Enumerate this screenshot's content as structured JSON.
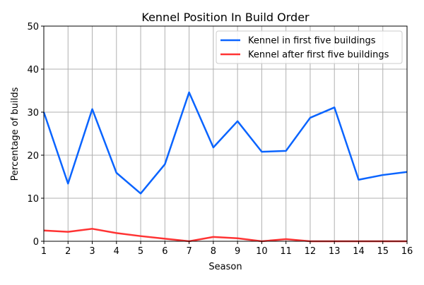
{
  "chart_data": {
    "type": "line",
    "title": "Kennel Position In Build Order",
    "xlabel": "Season",
    "ylabel": "Percentage of builds",
    "x": [
      1,
      2,
      3,
      4,
      5,
      6,
      7,
      8,
      9,
      10,
      11,
      12,
      13,
      14,
      15,
      16
    ],
    "xlim": [
      1,
      16
    ],
    "ylim": [
      0,
      50
    ],
    "yticks": [
      0,
      10,
      20,
      30,
      40,
      50
    ],
    "grid": true,
    "legend_position": "top-right",
    "series": [
      {
        "name": "Kennel in first five buildings",
        "color": "#0a64ff",
        "values": [
          30.0,
          13.4,
          30.7,
          15.9,
          11.1,
          17.9,
          34.6,
          21.8,
          27.9,
          20.8,
          21.0,
          28.7,
          31.1,
          14.3,
          15.4,
          16.1
        ]
      },
      {
        "name": "Kennel after first five buildings",
        "color": "#ff3333",
        "values": [
          2.5,
          2.2,
          2.9,
          1.9,
          1.2,
          0.6,
          0.0,
          1.0,
          0.7,
          0.0,
          0.5,
          0.0,
          0.0,
          0.0,
          0.0,
          0.0
        ]
      }
    ]
  }
}
